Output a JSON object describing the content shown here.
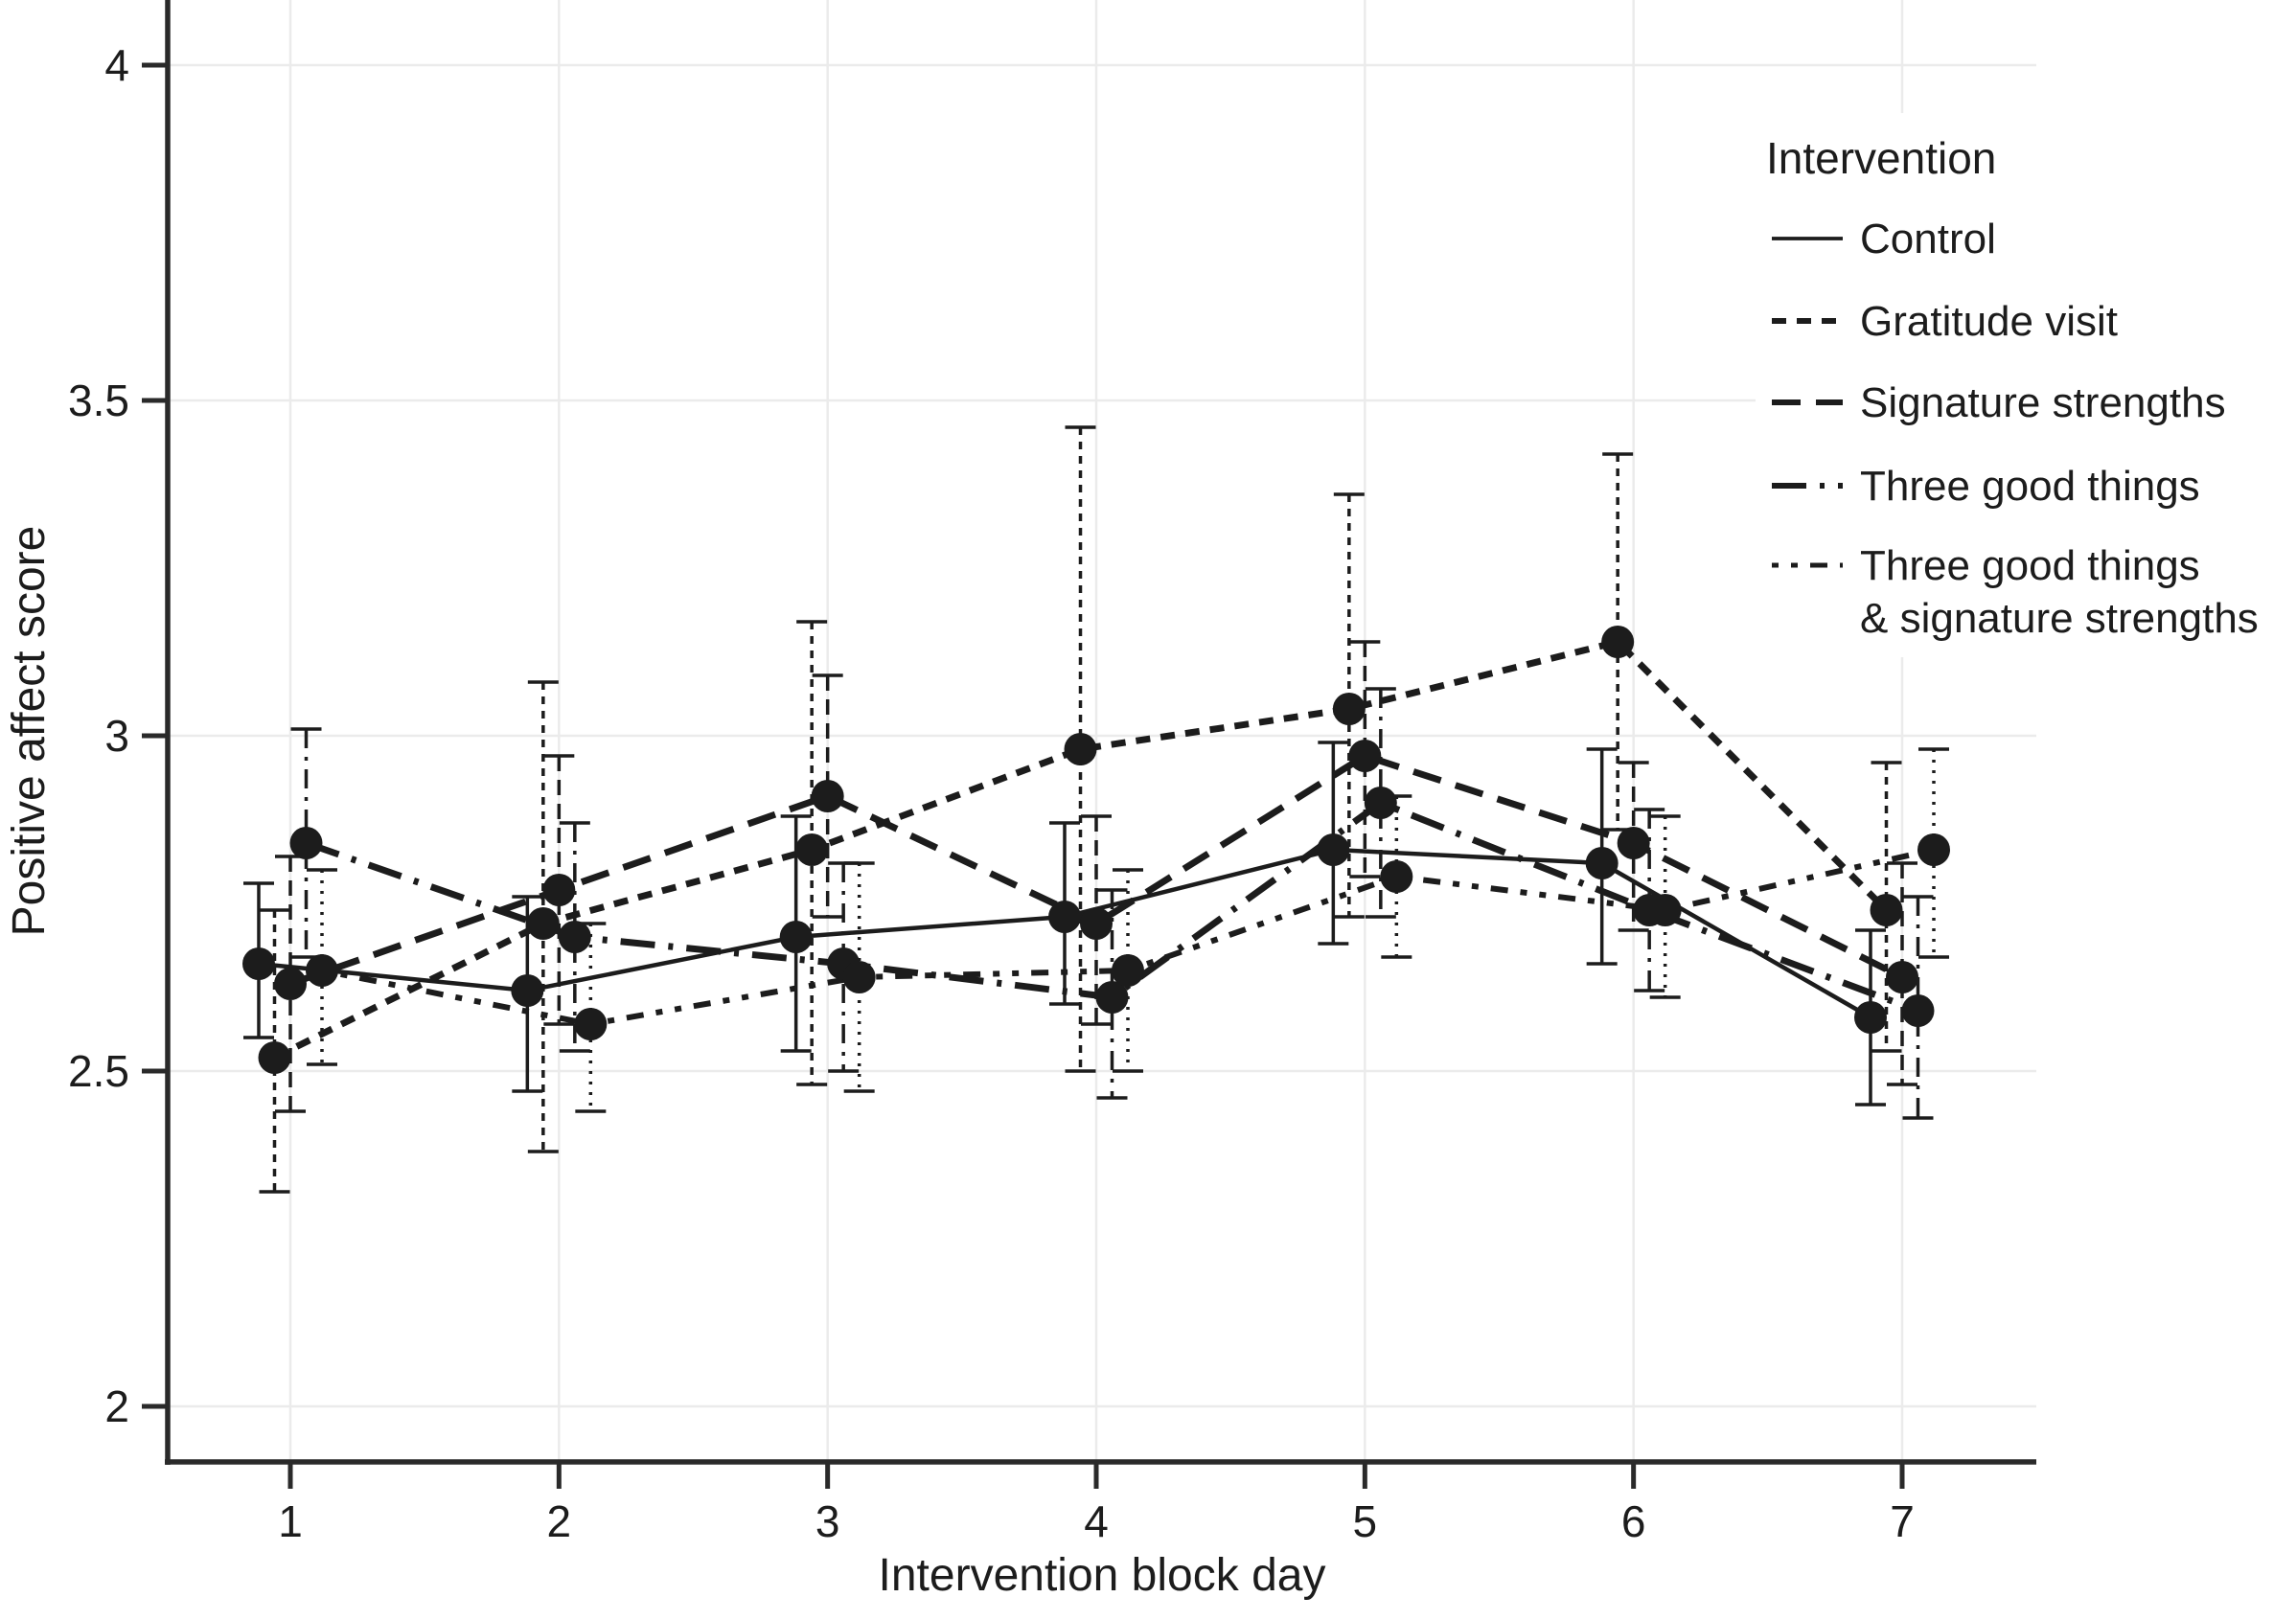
{
  "figure": {
    "background": "#ffffff",
    "ink_color": "#1c1c1c",
    "spine_color": "#2a2a2a",
    "grid_color": "#ebebeb"
  },
  "chart_data": {
    "type": "line",
    "title": "",
    "xlabel": "Intervention block day",
    "ylabel": "Positive affect score",
    "x": [
      1,
      2,
      3,
      4,
      5,
      6,
      7
    ],
    "x_tick_labels": [
      "1",
      "2",
      "3",
      "4",
      "5",
      "6",
      "7"
    ],
    "y_ticks": [
      2,
      2.5,
      3,
      3.5,
      4
    ],
    "y_tick_labels": [
      "2",
      "2.5",
      "3",
      "3.5",
      "4"
    ],
    "ylim": [
      1.85,
      4.1
    ],
    "grid": true,
    "error_bars": true,
    "marker": "filled-circle",
    "legend_title": "Intervention",
    "legend_position": "top-right",
    "series": [
      {
        "name": "Control",
        "line_style": "solid",
        "values": [
          2.66,
          2.62,
          2.7,
          2.73,
          2.83,
          2.81,
          2.58
        ],
        "ci_low": [
          2.55,
          2.47,
          2.53,
          2.6,
          2.69,
          2.66,
          2.45
        ],
        "ci_high": [
          2.78,
          2.76,
          2.88,
          2.87,
          2.99,
          2.98,
          2.71
        ]
      },
      {
        "name": "Gratitude visit",
        "line_style": "dash-fine",
        "values": [
          2.52,
          2.72,
          2.83,
          2.98,
          3.04,
          3.14,
          2.74
        ],
        "ci_low": [
          2.32,
          2.38,
          2.48,
          2.5,
          2.73,
          2.86,
          2.53
        ],
        "ci_high": [
          2.74,
          3.08,
          3.17,
          3.46,
          3.36,
          3.42,
          2.96
        ]
      },
      {
        "name": "Signature strengths",
        "line_style": "dash-medium",
        "values": [
          2.63,
          2.77,
          2.91,
          2.72,
          2.97,
          2.84,
          2.64
        ],
        "ci_low": [
          2.44,
          2.57,
          2.73,
          2.57,
          2.79,
          2.71,
          2.48
        ],
        "ci_high": [
          2.82,
          2.97,
          3.09,
          2.88,
          3.14,
          2.96,
          2.81
        ]
      },
      {
        "name": "Three good things",
        "line_style": "dash-long-dot",
        "values": [
          2.84,
          2.7,
          2.66,
          2.61,
          2.9,
          2.74,
          2.59
        ],
        "ci_low": [
          2.67,
          2.53,
          2.5,
          2.46,
          2.73,
          2.62,
          2.43
        ],
        "ci_high": [
          3.01,
          2.87,
          2.81,
          2.77,
          3.07,
          2.89,
          2.76
        ]
      },
      {
        "name": "Three good things\n& signature strengths",
        "line_style": "dotted-dash",
        "values": [
          2.65,
          2.57,
          2.64,
          2.65,
          2.79,
          2.74,
          2.83
        ],
        "ci_low": [
          2.51,
          2.44,
          2.47,
          2.5,
          2.67,
          2.61,
          2.67
        ],
        "ci_high": [
          2.8,
          2.72,
          2.81,
          2.8,
          2.91,
          2.88,
          2.98
        ]
      }
    ]
  }
}
